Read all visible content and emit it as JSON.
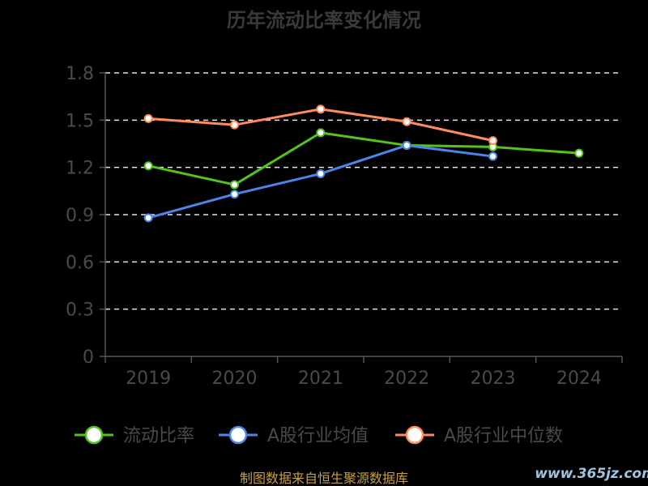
{
  "chart_data": {
    "type": "line",
    "title": "历年流动比率变化情况",
    "categories": [
      "2019",
      "2020",
      "2021",
      "2022",
      "2023",
      "2024"
    ],
    "ylim": [
      0,
      1.8
    ],
    "yticks": [
      "0",
      "0.3",
      "0.6",
      "0.9",
      "1.2",
      "1.5",
      "1.8"
    ],
    "grid": true,
    "legend_position": "bottom",
    "series": [
      {
        "name": "流动比率",
        "color": "#52c41a",
        "values": [
          1.21,
          1.09,
          1.42,
          1.34,
          1.33,
          1.29
        ]
      },
      {
        "name": "A股行业均值",
        "color": "#4a86e8",
        "values": [
          0.88,
          1.03,
          1.16,
          1.34,
          1.27,
          null
        ]
      },
      {
        "name": "A股行业中位数",
        "color": "#ff8c5a",
        "values": [
          1.51,
          1.47,
          1.57,
          1.49,
          1.37,
          null
        ]
      }
    ]
  },
  "footer": {
    "source": "制图数据来自恒生聚源数据库",
    "watermark": "www.365jz.com"
  }
}
